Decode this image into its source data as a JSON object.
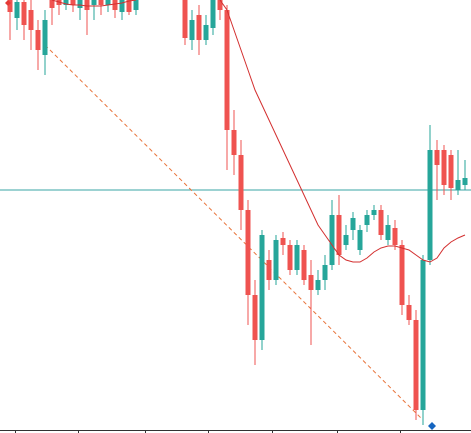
{
  "chart_data": {
    "type": "candlestick",
    "ylim": [
      0,
      433
    ],
    "up_color": "#26a69a",
    "down_color": "#ef5350",
    "open": [
      433,
      415,
      431,
      423,
      403,
      378,
      433,
      433,
      428,
      433,
      425,
      433,
      428,
      433,
      428,
      433,
      421,
      433,
      423,
      null,
      null,
      null,
      null,
      null,
      null,
      433,
      393,
      418,
      393,
      405,
      433,
      423,
      303,
      278,
      223,
      138,
      93,
      173,
      153,
      195,
      188,
      163,
      183,
      158,
      143,
      153,
      168,
      218,
      188,
      203,
      183,
      208,
      218,
      223,
      193,
      205,
      188,
      128,
      113,
      23,
      173,
      283,
      283,
      278,
      243,
      248
    ],
    "high": [
      433,
      433,
      433,
      433,
      413,
      423,
      433,
      433,
      433,
      433,
      433,
      433,
      433,
      433,
      433,
      433,
      433,
      433,
      433,
      null,
      null,
      null,
      null,
      null,
      null,
      433,
      423,
      428,
      418,
      433,
      433,
      428,
      323,
      293,
      233,
      153,
      203,
      183,
      198,
      201,
      193,
      193,
      188,
      173,
      163,
      178,
      233,
      238,
      208,
      221,
      208,
      223,
      228,
      228,
      218,
      213,
      193,
      138,
      123,
      178,
      308,
      293,
      288,
      283,
      283,
      273
    ],
    "low": [
      393,
      403,
      393,
      383,
      363,
      358,
      408,
      418,
      423,
      421,
      413,
      398,
      413,
      418,
      421,
      415,
      413,
      418,
      418,
      null,
      null,
      null,
      null,
      null,
      null,
      388,
      383,
      378,
      388,
      398,
      413,
      263,
      258,
      203,
      108,
      68,
      83,
      143,
      148,
      178,
      158,
      158,
      148,
      88,
      138,
      143,
      163,
      168,
      183,
      193,
      178,
      201,
      213,
      193,
      188,
      183,
      118,
      108,
      13,
      8,
      168,
      233,
      238,
      233,
      238,
      243
    ],
    "close": [
      421,
      431,
      408,
      403,
      383,
      413,
      425,
      428,
      433,
      428,
      433,
      423,
      433,
      428,
      433,
      423,
      433,
      421,
      433,
      null,
      null,
      null,
      null,
      null,
      null,
      395,
      413,
      393,
      408,
      433,
      423,
      303,
      278,
      223,
      138,
      93,
      198,
      153,
      193,
      188,
      163,
      188,
      153,
      143,
      153,
      168,
      218,
      178,
      198,
      215,
      203,
      218,
      223,
      198,
      208,
      188,
      128,
      113,
      23,
      173,
      283,
      268,
      248,
      245,
      253,
      255
    ],
    "moving_average": {
      "color": "#d32f2f",
      "values": [
        null,
        null,
        null,
        null,
        null,
        null,
        433,
        431,
        429,
        428,
        428,
        427,
        427,
        427,
        428,
        429,
        430,
        432,
        433,
        null,
        null,
        null,
        null,
        null,
        null,
        null,
        null,
        null,
        null,
        null,
        433,
        423,
        403,
        383,
        363,
        343,
        328,
        313,
        298,
        283,
        268,
        253,
        238,
        223,
        208,
        198,
        188,
        178,
        173,
        171,
        171,
        175,
        181,
        185,
        187,
        187,
        185,
        183,
        178,
        173,
        171,
        175,
        185,
        191,
        195,
        198
      ]
    },
    "horizontal_line": {
      "value": 243,
      "color": "#3aa6a6"
    },
    "trend_line": {
      "from": [
        5,
        388
      ],
      "to": [
        59,
        13
      ],
      "color": "#e8743b"
    }
  }
}
